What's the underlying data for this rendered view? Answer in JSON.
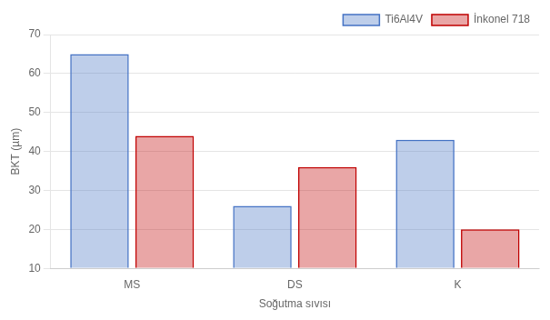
{
  "chart_data": {
    "type": "bar",
    "categories": [
      "MS",
      "DS",
      "K"
    ],
    "series": [
      {
        "name": "Ti6Al4V",
        "color": "#4472C4",
        "values": [
          65,
          26,
          43
        ]
      },
      {
        "name": "İnkonel 718",
        "color": "#C00000",
        "values": [
          44,
          36,
          20
        ]
      }
    ],
    "xlabel": "Soğutma sıvısı",
    "ylabel": "BKT (µm)",
    "ylim": [
      10,
      70
    ],
    "yticks": [
      10,
      20,
      30,
      40,
      50,
      60,
      70
    ],
    "grid": true,
    "legend": "upper right"
  }
}
